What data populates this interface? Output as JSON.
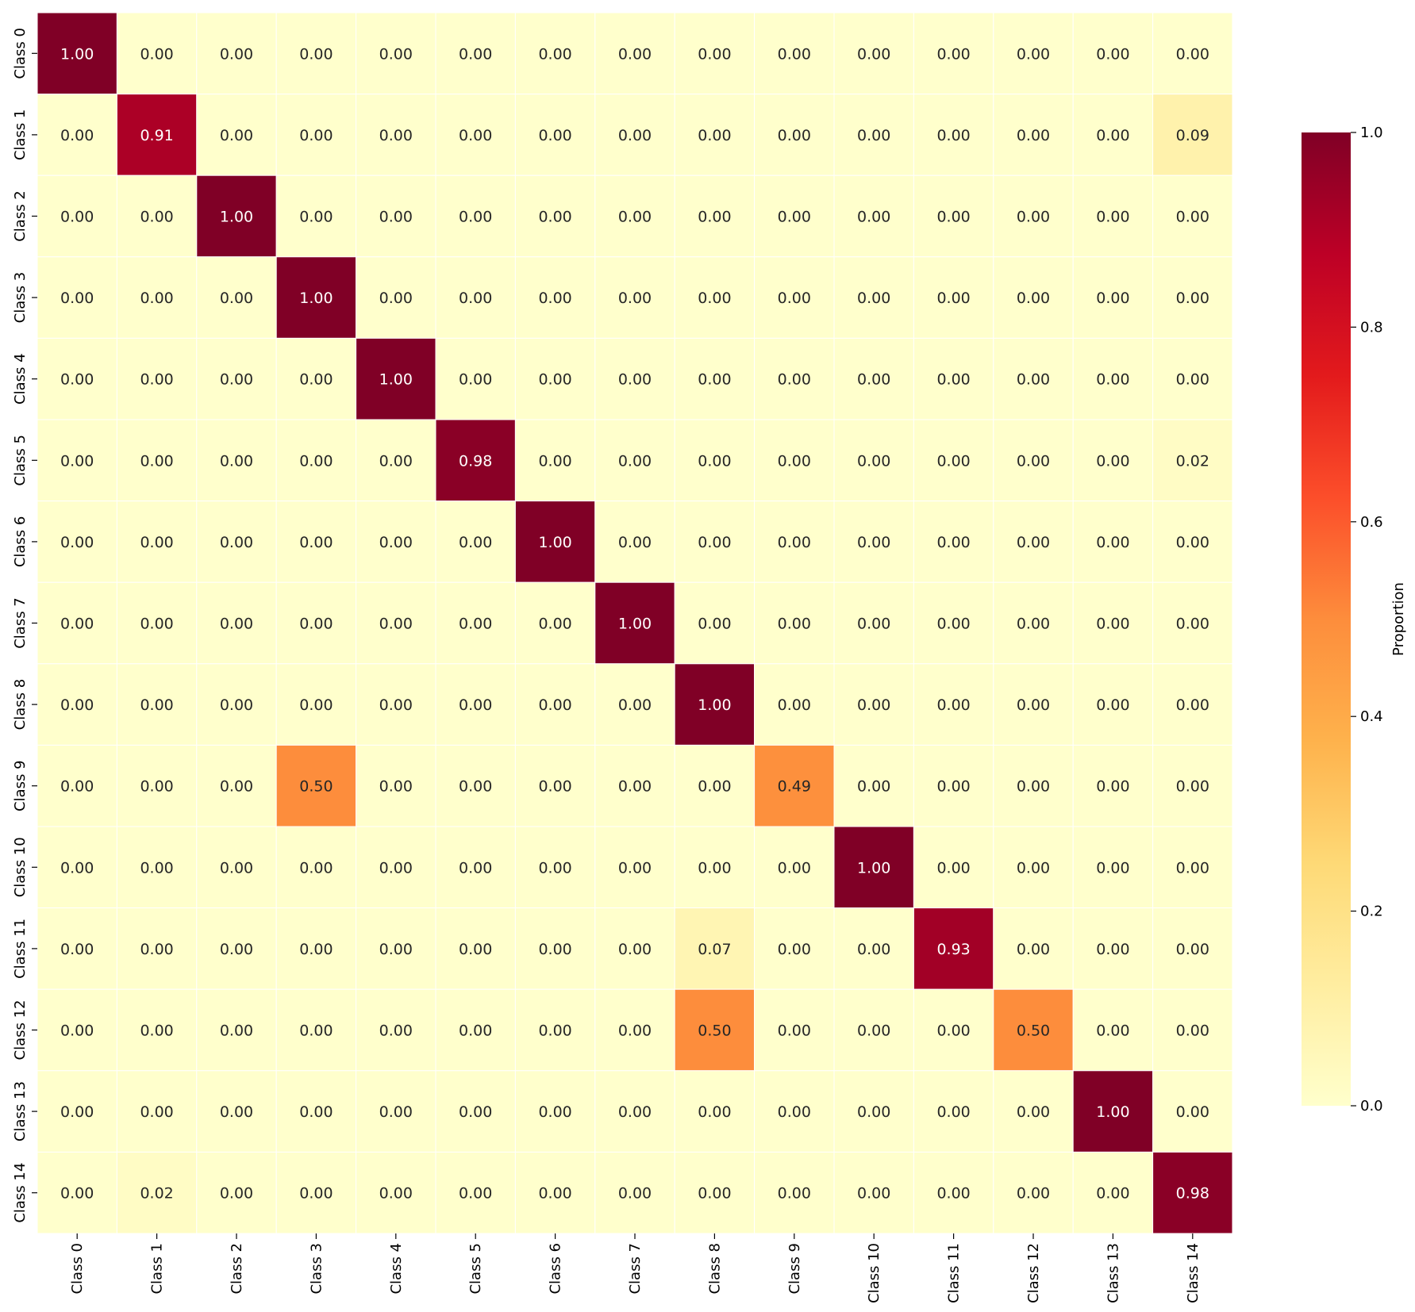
{
  "chart_data": {
    "type": "heatmap",
    "title": "",
    "xlabel": "",
    "ylabel": "",
    "x_categories": [
      "Class 0",
      "Class 1",
      "Class 2",
      "Class 3",
      "Class 4",
      "Class 5",
      "Class 6",
      "Class 7",
      "Class 8",
      "Class 9",
      "Class 10",
      "Class 11",
      "Class 12",
      "Class 13",
      "Class 14"
    ],
    "y_categories": [
      "Class 0",
      "Class 1",
      "Class 2",
      "Class 3",
      "Class 4",
      "Class 5",
      "Class 6",
      "Class 7",
      "Class 8",
      "Class 9",
      "Class 10",
      "Class 11",
      "Class 12",
      "Class 13",
      "Class 14"
    ],
    "values": [
      [
        1.0,
        0,
        0,
        0,
        0,
        0,
        0,
        0,
        0,
        0,
        0,
        0,
        0,
        0,
        0
      ],
      [
        0,
        0.91,
        0,
        0,
        0,
        0,
        0,
        0,
        0,
        0,
        0,
        0,
        0,
        0,
        0.09
      ],
      [
        0,
        0,
        1.0,
        0,
        0,
        0,
        0,
        0,
        0,
        0,
        0,
        0,
        0,
        0,
        0
      ],
      [
        0,
        0,
        0,
        1.0,
        0,
        0,
        0,
        0,
        0,
        0,
        0,
        0,
        0,
        0,
        0
      ],
      [
        0,
        0,
        0,
        0,
        1.0,
        0,
        0,
        0,
        0,
        0,
        0,
        0,
        0,
        0,
        0
      ],
      [
        0,
        0,
        0,
        0,
        0,
        0.98,
        0,
        0,
        0,
        0,
        0,
        0,
        0,
        0,
        0.02
      ],
      [
        0,
        0,
        0,
        0,
        0,
        0,
        1.0,
        0,
        0,
        0,
        0,
        0,
        0,
        0,
        0
      ],
      [
        0,
        0,
        0,
        0,
        0,
        0,
        0,
        1.0,
        0,
        0,
        0,
        0,
        0,
        0,
        0
      ],
      [
        0,
        0,
        0,
        0,
        0,
        0,
        0,
        0,
        1.0,
        0,
        0,
        0,
        0,
        0,
        0
      ],
      [
        0,
        0,
        0,
        0.5,
        0,
        0,
        0,
        0,
        0,
        0.49,
        0,
        0,
        0,
        0,
        0
      ],
      [
        0,
        0,
        0,
        0,
        0,
        0,
        0,
        0,
        0,
        0,
        1.0,
        0,
        0,
        0,
        0
      ],
      [
        0,
        0,
        0,
        0,
        0,
        0,
        0,
        0,
        0.07,
        0,
        0,
        0.93,
        0,
        0,
        0
      ],
      [
        0,
        0,
        0,
        0,
        0,
        0,
        0,
        0,
        0.5,
        0,
        0,
        0,
        0.5,
        0,
        0
      ],
      [
        0,
        0,
        0,
        0,
        0,
        0,
        0,
        0,
        0,
        0,
        0,
        0,
        0,
        1.0,
        0
      ],
      [
        0,
        0.02,
        0,
        0,
        0,
        0,
        0,
        0,
        0,
        0,
        0,
        0,
        0,
        0,
        0.98
      ]
    ],
    "value_format": "2 decimals",
    "colormap": "YlOrRd",
    "colormap_stops": [
      "#ffffcc",
      "#ffeda0",
      "#fed976",
      "#feb24c",
      "#fd8d3c",
      "#fc4e2a",
      "#e31a1c",
      "#bd0026",
      "#800026"
    ],
    "cell_border_color": "#ffffff",
    "vmin": 0.0,
    "vmax": 1.0,
    "colorbar": {
      "label": "Proportion",
      "ticks": [
        "0.0",
        "0.2",
        "0.4",
        "0.6",
        "0.8",
        "1.0"
      ]
    },
    "grid": false,
    "legend": "colorbar at right"
  }
}
